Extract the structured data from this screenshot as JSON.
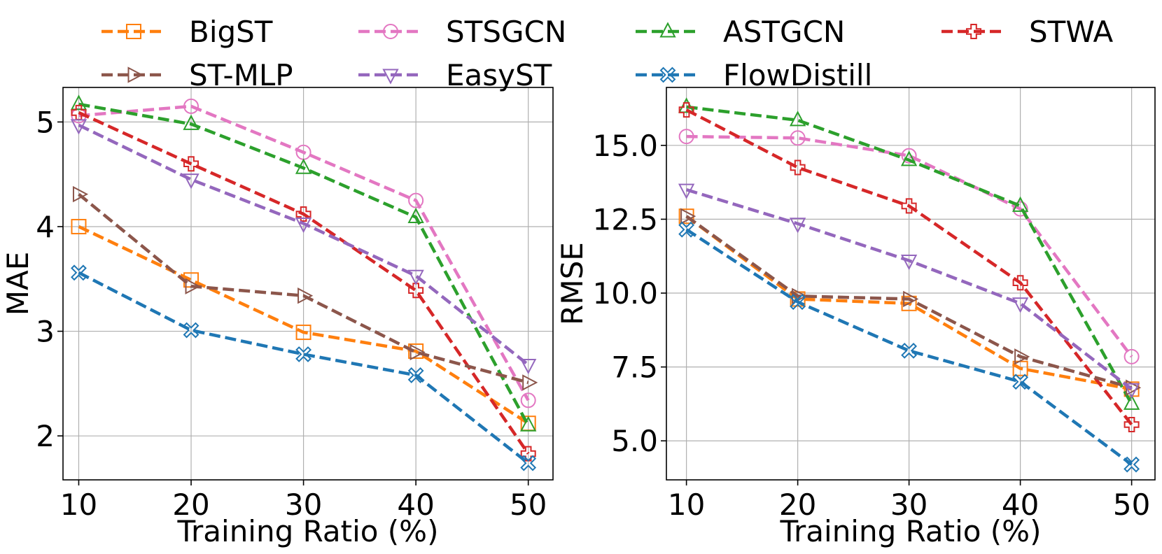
{
  "chart_data": [
    {
      "type": "line",
      "xlabel": "Training Ratio (%)",
      "ylabel": "MAE",
      "x": [
        10,
        20,
        30,
        40,
        50
      ],
      "xticks": [
        "10",
        "20",
        "30",
        "40",
        "50"
      ],
      "yticks": [
        {
          "value": 2,
          "label": "2"
        },
        {
          "value": 3,
          "label": "3"
        },
        {
          "value": 4,
          "label": "4"
        },
        {
          "value": 5,
          "label": "5"
        }
      ],
      "xlim": [
        8.6,
        52.2
      ],
      "ylim": [
        1.58,
        5.33
      ],
      "grid": true,
      "series": [
        {
          "name": "BigST",
          "values": [
            4.0,
            3.49,
            2.99,
            2.81,
            2.12
          ]
        },
        {
          "name": "STSGCN",
          "values": [
            5.06,
            5.15,
            4.71,
            4.25,
            2.34
          ]
        },
        {
          "name": "ASTGCN",
          "values": [
            5.17,
            4.98,
            4.56,
            4.09,
            2.1
          ]
        },
        {
          "name": "STWA",
          "values": [
            5.09,
            4.6,
            4.12,
            3.39,
            1.83
          ]
        },
        {
          "name": "ST-MLP",
          "values": [
            4.31,
            3.43,
            3.34,
            2.8,
            2.51
          ]
        },
        {
          "name": "EasyST",
          "values": [
            4.97,
            4.45,
            4.03,
            3.53,
            2.68
          ]
        },
        {
          "name": "FlowDistill",
          "values": [
            3.56,
            3.01,
            2.78,
            2.58,
            1.74
          ]
        }
      ]
    },
    {
      "type": "line",
      "xlabel": "Training Ratio (%)",
      "ylabel": "RMSE",
      "x": [
        10,
        20,
        30,
        40,
        50
      ],
      "xticks": [
        "10",
        "20",
        "30",
        "40",
        "50"
      ],
      "yticks": [
        {
          "value": 5.0,
          "label": "5.0"
        },
        {
          "value": 7.5,
          "label": "7.5"
        },
        {
          "value": 10.0,
          "label": "10.0"
        },
        {
          "value": 12.5,
          "label": "12.5"
        },
        {
          "value": 15.0,
          "label": "15.0"
        }
      ],
      "xlim": [
        8.2,
        52.1
      ],
      "ylim": [
        3.68,
        16.96
      ],
      "grid": true,
      "series": [
        {
          "name": "BigST",
          "values": [
            12.6,
            9.8,
            9.65,
            7.45,
            6.75
          ]
        },
        {
          "name": "STSGCN",
          "values": [
            15.3,
            15.25,
            14.65,
            12.85,
            7.85
          ]
        },
        {
          "name": "ASTGCN",
          "values": [
            16.3,
            15.85,
            14.5,
            12.95,
            6.25
          ]
        },
        {
          "name": "STWA",
          "values": [
            16.2,
            14.25,
            12.95,
            10.35,
            5.55
          ]
        },
        {
          "name": "ST-MLP",
          "values": [
            12.6,
            9.9,
            9.8,
            7.85,
            6.8
          ]
        },
        {
          "name": "EasyST",
          "values": [
            13.5,
            12.35,
            11.1,
            9.65,
            6.75
          ]
        },
        {
          "name": "FlowDistill",
          "values": [
            12.15,
            9.7,
            8.05,
            7.0,
            4.2
          ]
        }
      ]
    }
  ],
  "legend": [
    {
      "name": "BigST",
      "color": "#ff7f0e",
      "marker": "square"
    },
    {
      "name": "STSGCN",
      "color": "#e377c2",
      "marker": "circle"
    },
    {
      "name": "ASTGCN",
      "color": "#2ca02c",
      "marker": "triangle-up"
    },
    {
      "name": "STWA",
      "color": "#d62728",
      "marker": "plus"
    },
    {
      "name": "ST-MLP",
      "color": "#8c564b",
      "marker": "triangle-right"
    },
    {
      "name": "EasyST",
      "color": "#9467bd",
      "marker": "triangle-down"
    },
    {
      "name": "FlowDistill",
      "color": "#1f77b4",
      "marker": "x"
    }
  ]
}
